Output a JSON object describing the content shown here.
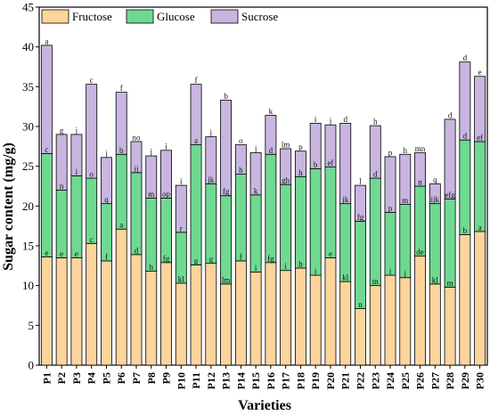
{
  "chart_data": {
    "type": "bar",
    "stacked": true,
    "xlabel": "Varieties",
    "ylabel": "Sugar content (mg/g)",
    "ylim": [
      0,
      45
    ],
    "yticks": [
      0,
      5,
      10,
      15,
      20,
      25,
      30,
      35,
      40,
      45
    ],
    "legend_position": "top-left",
    "categories": [
      "P1",
      "P2",
      "P3",
      "P4",
      "P5",
      "P6",
      "P7",
      "P8",
      "P9",
      "P10",
      "P11",
      "P12",
      "P13",
      "P14",
      "P15",
      "P16",
      "P17",
      "P18",
      "P19",
      "P20",
      "P21",
      "P22",
      "P23",
      "P24",
      "P25",
      "P26",
      "P27",
      "P28",
      "P29",
      "P30"
    ],
    "series": [
      {
        "name": "Fructose",
        "color": "#fcd49c",
        "values": [
          13.6,
          13.5,
          13.5,
          15.3,
          13.1,
          17.1,
          13.9,
          11.8,
          12.9,
          10.3,
          12.6,
          12.8,
          10.2,
          13.1,
          11.7,
          12.9,
          11.9,
          12.2,
          11.3,
          13.5,
          10.5,
          7.1,
          10.0,
          11.3,
          11.0,
          13.7,
          10.2,
          9.8,
          16.4,
          16.8
        ],
        "labels": [
          "e",
          "e",
          "e",
          "c",
          "f",
          "a",
          "d",
          "h",
          "fg",
          "kl",
          "g",
          "g",
          "lm",
          "f",
          "i",
          "fg",
          "i",
          "h",
          "j",
          "e",
          "kl",
          "n",
          "m",
          "j",
          "j",
          "de",
          "kl",
          "m",
          "b",
          "a"
        ]
      },
      {
        "name": "Glucose",
        "color": "#6fd992",
        "values": [
          13.0,
          8.5,
          10.3,
          8.2,
          7.2,
          9.4,
          10.3,
          9.2,
          8.1,
          6.4,
          15.1,
          10.0,
          11.1,
          10.9,
          9.7,
          13.6,
          10.8,
          11.5,
          13.4,
          11.4,
          9.8,
          11.0,
          13.5,
          7.9,
          9.2,
          8.8,
          10.1,
          11.1,
          11.9,
          11.3
        ],
        "labels": [
          "c",
          "n",
          "i",
          "o",
          "q",
          "b",
          "ij",
          "m",
          "op",
          "r",
          "a",
          "jk",
          "fg",
          "h",
          "k",
          "d",
          "gh",
          "h",
          "b",
          "ef",
          "jk",
          "fg",
          "d",
          "p",
          "m",
          "n",
          "ijk",
          "efg",
          "d",
          "ef"
        ]
      },
      {
        "name": "Sucrose",
        "color": "#c8b6e0",
        "values": [
          13.6,
          7.0,
          5.2,
          11.8,
          5.8,
          7.8,
          3.9,
          5.3,
          6.0,
          5.9,
          7.6,
          5.9,
          12.0,
          3.7,
          5.3,
          4.9,
          4.5,
          3.2,
          5.7,
          5.3,
          10.1,
          4.5,
          6.6,
          7.0,
          6.3,
          4.2,
          2.5,
          10.0,
          9.8,
          8.2
        ],
        "labels": [
          "a",
          "g",
          "j",
          "c",
          "j",
          "f",
          "no",
          "j",
          "i",
          "i",
          "f",
          "j",
          "b",
          "o",
          "j",
          "k",
          "lm",
          "p",
          "i",
          "j",
          "d",
          "l",
          "h",
          "p",
          "h",
          "mn",
          "q",
          "d",
          "d",
          "e"
        ]
      }
    ]
  }
}
